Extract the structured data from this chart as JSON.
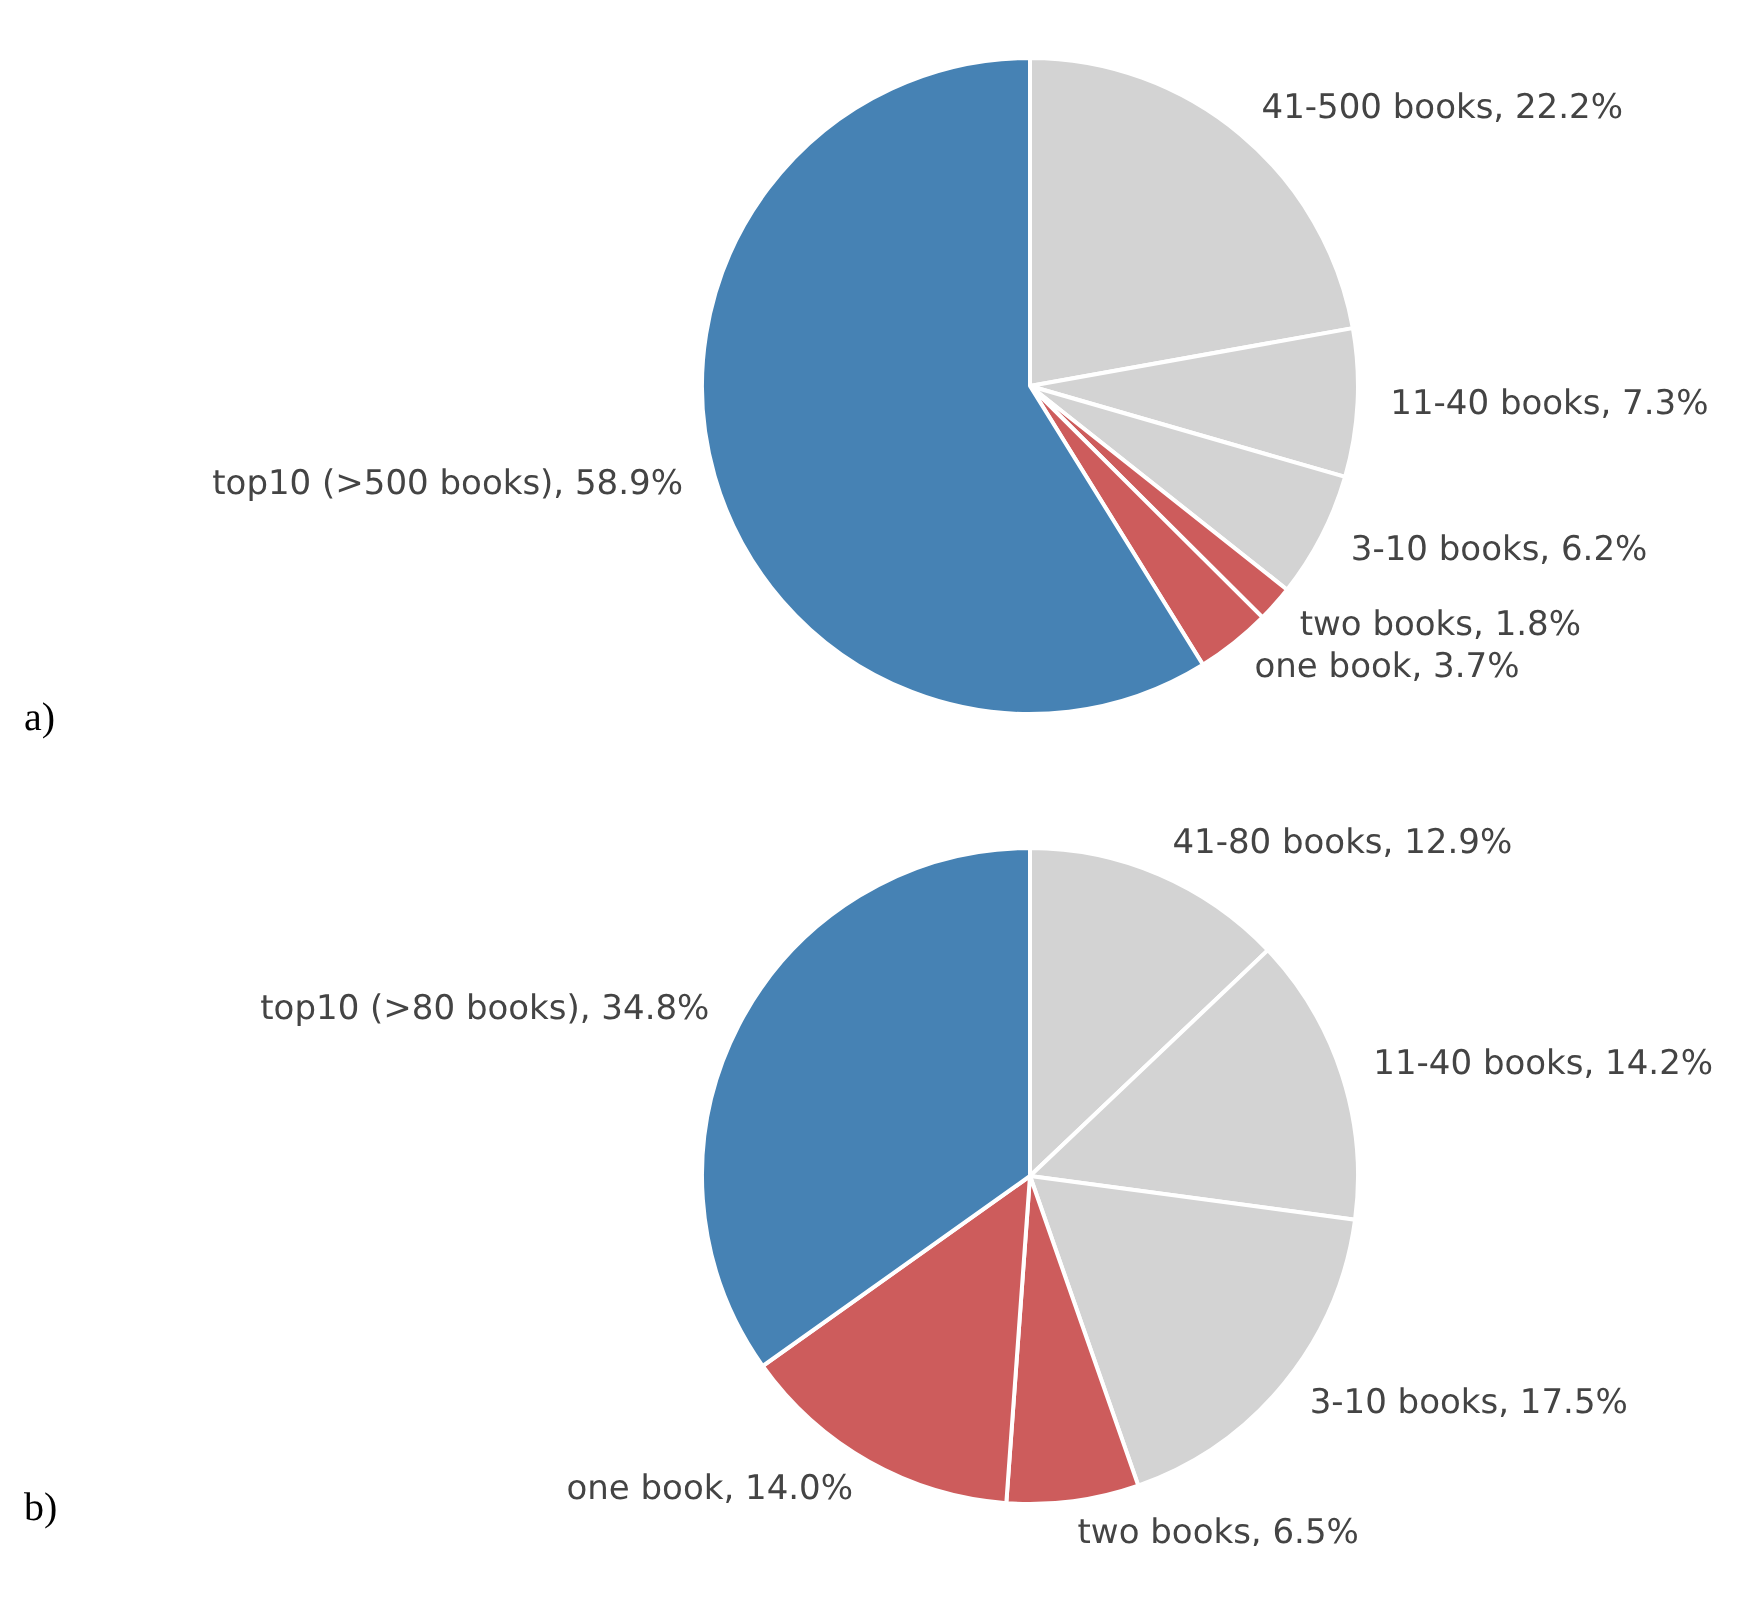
{
  "chart_data": [
    {
      "type": "pie",
      "categories": [
        "41-500 books",
        "11-40 books",
        "3-10 books",
        "two books",
        "one book",
        "top10 (>500 books)"
      ],
      "values": [
        22.2,
        7.3,
        6.2,
        1.8,
        3.7,
        58.9
      ],
      "value_labels": [
        "22.2%",
        "7.3%",
        "6.2%",
        "1.8%",
        "3.7%",
        "58.9%"
      ],
      "colors": [
        "#d3d3d3",
        "#d3d3d3",
        "#d3d3d3",
        "#cd5c5c",
        "#cd5c5c",
        "#4682b4"
      ],
      "legend": false,
      "annotations": [
        "a)"
      ]
    },
    {
      "type": "pie",
      "categories": [
        "41-80 books",
        "11-40 books",
        "3-10 books",
        "two books",
        "one book",
        "top10 (>80 books)"
      ],
      "values": [
        12.9,
        14.2,
        17.5,
        6.5,
        14.0,
        34.8
      ],
      "value_labels": [
        "12.9%",
        "14.2%",
        "17.5%",
        "6.5%",
        "14.0%",
        "34.8%"
      ],
      "colors": [
        "#d3d3d3",
        "#d3d3d3",
        "#d3d3d3",
        "#cd5c5c",
        "#cd5c5c",
        "#4682b4"
      ],
      "legend": false,
      "annotations": [
        "b)"
      ]
    }
  ]
}
